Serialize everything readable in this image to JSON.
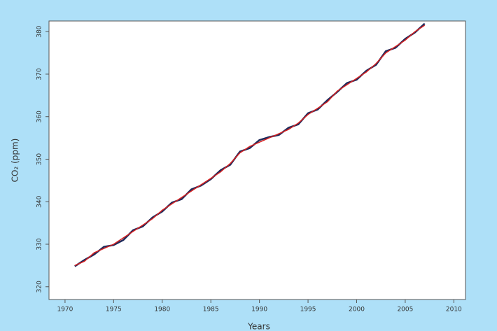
{
  "chart_data": {
    "type": "line",
    "x_label": "Years",
    "y_label": "CO₂ (ppm)",
    "x": [
      1971,
      1972,
      1973,
      1974,
      1975,
      1976,
      1977,
      1978,
      1979,
      1980,
      1981,
      1982,
      1983,
      1984,
      1985,
      1986,
      1987,
      1988,
      1989,
      1990,
      1991,
      1992,
      1993,
      1994,
      1995,
      1996,
      1997,
      1998,
      1999,
      2000,
      2001,
      2002,
      2003,
      2004,
      2005,
      2006,
      2007
    ],
    "series": [
      {
        "color": "#1f2a5a",
        "values": [
          324.8,
          326.3,
          327.6,
          329.4,
          329.8,
          331.0,
          333.3,
          334.2,
          336.3,
          337.7,
          339.8,
          340.6,
          342.9,
          343.8,
          345.3,
          347.4,
          348.7,
          351.8,
          352.6,
          354.5,
          355.2,
          355.7,
          357.4,
          358.2,
          360.8,
          361.7,
          363.9,
          365.8,
          367.9,
          368.7,
          370.8,
          372.2,
          375.4,
          376.2,
          378.3,
          379.8,
          381.9
        ]
      },
      {
        "color": "#d62020",
        "values": [
          325.0,
          326.0,
          328.0,
          329.0,
          330.0,
          331.5,
          333.0,
          334.5,
          336.0,
          338.0,
          339.5,
          341.0,
          342.5,
          344.0,
          345.5,
          347.0,
          349.0,
          351.5,
          353.0,
          354.0,
          355.0,
          356.0,
          357.0,
          358.5,
          360.5,
          362.0,
          363.5,
          366.0,
          367.5,
          369.0,
          370.5,
          372.5,
          375.0,
          376.5,
          378.0,
          380.0,
          381.5
        ]
      }
    ],
    "xlim": [
      1968.35,
      2011.2
    ],
    "ylim": [
      317,
      382.5
    ],
    "xticks": [
      1970,
      1975,
      1980,
      1985,
      1990,
      1995,
      2000,
      2005,
      2010
    ],
    "yticks": [
      320,
      330,
      340,
      350,
      360,
      370,
      380
    ]
  }
}
